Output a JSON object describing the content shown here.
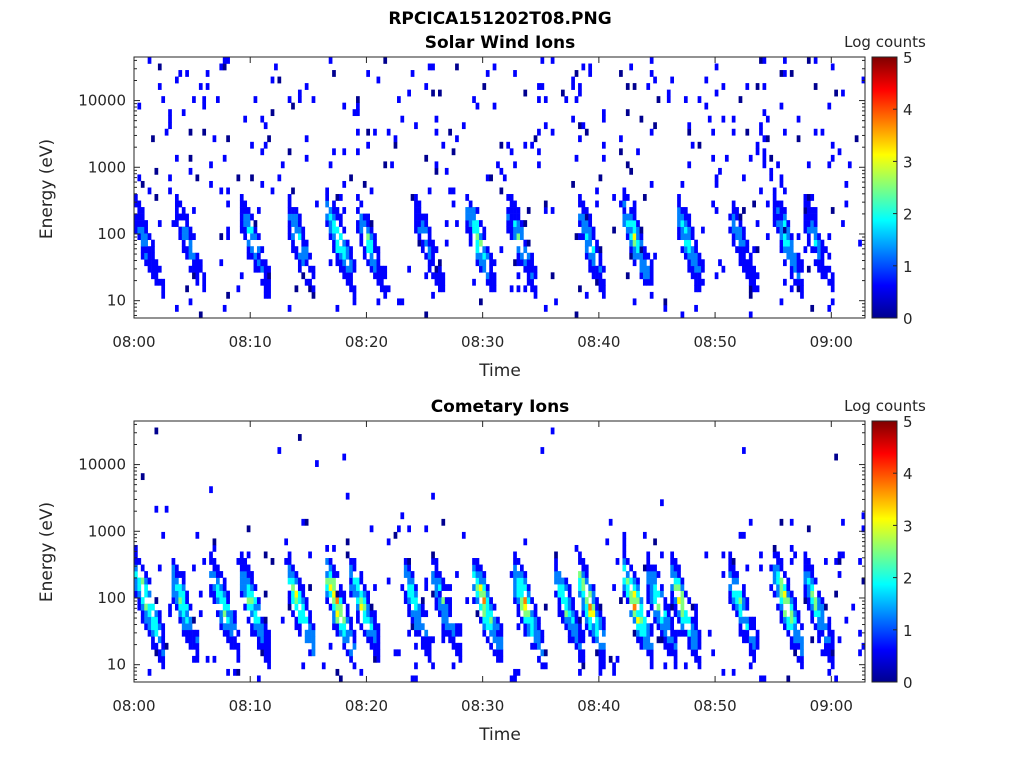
{
  "figure_title": "RPCICA151202T08.PNG",
  "colormap": [
    "#00008f",
    "#0000ff",
    "#007fff",
    "#00ffff",
    "#7fff7f",
    "#ffff00",
    "#ff7f00",
    "#ff0000",
    "#7f0000"
  ],
  "chart_data": [
    {
      "type": "heatmap",
      "title": "Solar Wind Ions",
      "xlabel": "Time",
      "ylabel": "Energy (eV)",
      "x_tick_labels": [
        "08:00",
        "08:10",
        "08:20",
        "08:30",
        "08:40",
        "08:50",
        "09:00"
      ],
      "x_ticks_min": [
        0,
        10,
        20,
        30,
        40,
        50,
        60
      ],
      "xlim_min": [
        0,
        62.9
      ],
      "y_scale": "log",
      "y_tick_labels": [
        "10",
        "100",
        "1000",
        "10000"
      ],
      "y_ticks": [
        10,
        100,
        1000,
        10000
      ],
      "ylim": [
        5.5,
        45000
      ],
      "colorbar": {
        "label": "Log counts",
        "range": [
          0,
          5
        ],
        "ticks": [
          "0",
          "1",
          "2",
          "3",
          "4",
          "5"
        ]
      },
      "bursts_min": [
        0.3,
        4,
        9.5,
        13.5,
        17,
        19.5,
        24.5,
        29,
        32.5,
        38.5,
        42.5,
        47,
        51.5,
        55.5,
        58
      ],
      "peak_log_counts": [
        1.5,
        1.5,
        2,
        2,
        2.5,
        2,
        1.5,
        2.5,
        2,
        2,
        2.5,
        2,
        1.5,
        2,
        1.5
      ],
      "background": "sparse single counts (log counts ~0.3) spread over 10–20000 eV"
    },
    {
      "type": "heatmap",
      "title": "Cometary Ions",
      "xlabel": "Time",
      "ylabel": "Energy (eV)",
      "x_tick_labels": [
        "08:00",
        "08:10",
        "08:20",
        "08:30",
        "08:40",
        "08:50",
        "09:00"
      ],
      "x_ticks_min": [
        0,
        10,
        20,
        30,
        40,
        50,
        60
      ],
      "xlim_min": [
        0,
        62.9
      ],
      "y_scale": "log",
      "y_tick_labels": [
        "10",
        "100",
        "1000",
        "10000"
      ],
      "y_ticks": [
        10,
        100,
        1000,
        10000
      ],
      "ylim": [
        5.5,
        45000
      ],
      "colorbar": {
        "label": "Log counts",
        "range": [
          0,
          5
        ],
        "ticks": [
          "0",
          "1",
          "2",
          "3",
          "4",
          "5"
        ]
      },
      "bursts_min": [
        0.5,
        3.5,
        7,
        9.5,
        13.5,
        16.8,
        19,
        23.5,
        26,
        29.5,
        33,
        36.5,
        38.5,
        42.5,
        44.5,
        46.5,
        51.5,
        55.5,
        58
      ],
      "peak_log_counts": [
        3.2,
        2.5,
        2.5,
        2.6,
        3,
        3.8,
        2.8,
        2.5,
        2,
        3.5,
        3.2,
        2.5,
        3.8,
        3.8,
        2.8,
        3,
        2.5,
        3.5,
        2.5
      ],
      "background": "sparse counts mostly between 10 and 1000 eV"
    }
  ]
}
